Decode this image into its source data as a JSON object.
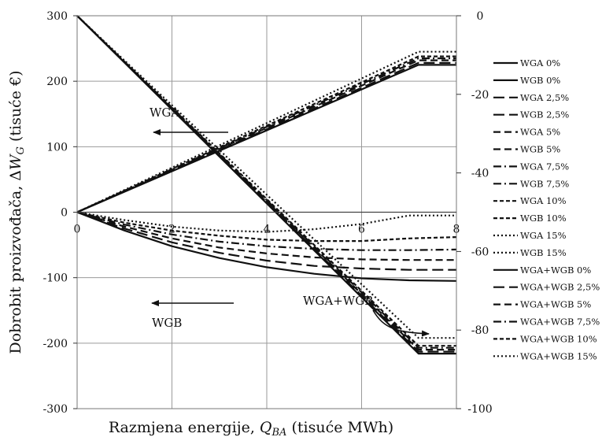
{
  "chart_data": {
    "type": "line",
    "xlabel": "Razmjena energije, Q_BA (tisuće MWh)",
    "xlabel_parts": [
      "Razmjena energije, ",
      "Q",
      "BA",
      " (tisuće MWh)"
    ],
    "ylabel": "Dobrobit proizvođača, ΔW_G (tisuće €)",
    "ylabel_parts": [
      "Dobrobit proizvođača, Δ",
      "W",
      "G",
      " (tisuće €)"
    ],
    "xlim": [
      0,
      8
    ],
    "ylim_left": [
      -300,
      300
    ],
    "ylim_right": [
      -100,
      0
    ],
    "xticks": [
      "0",
      "2",
      "4",
      "6",
      "8"
    ],
    "yticks_left": [
      "300",
      "200",
      "100",
      "0",
      "-100",
      "-200",
      "-300"
    ],
    "yticks_right": [
      "0",
      "-20",
      "-40",
      "-60",
      "-80",
      "-100"
    ],
    "grid": true,
    "legend_position": "right",
    "annotations": [
      "WGA",
      "WGB",
      "WGA+WGB"
    ],
    "series": [
      {
        "name": "WGA 0%",
        "axis": "left",
        "style": "solid",
        "points": [
          [
            0,
            0
          ],
          [
            7.2,
            225
          ],
          [
            8,
            225
          ]
        ]
      },
      {
        "name": "WGB 0%",
        "axis": "left",
        "style": "solid",
        "points": [
          [
            0,
            0
          ],
          [
            1,
            -28
          ],
          [
            2,
            -52
          ],
          [
            3,
            -70
          ],
          [
            4,
            -84
          ],
          [
            5,
            -94
          ],
          [
            6,
            -101
          ],
          [
            7,
            -104
          ],
          [
            8,
            -105
          ]
        ]
      },
      {
        "name": "WGA 2,5%",
        "axis": "left",
        "style": "longdash",
        "points": [
          [
            0,
            0
          ],
          [
            7.2,
            228
          ],
          [
            8,
            228
          ]
        ]
      },
      {
        "name": "WGB 2,5%",
        "axis": "left",
        "style": "longdash",
        "points": [
          [
            0,
            0
          ],
          [
            1,
            -25
          ],
          [
            2,
            -46
          ],
          [
            3,
            -62
          ],
          [
            4,
            -74
          ],
          [
            5,
            -82
          ],
          [
            6,
            -86
          ],
          [
            7,
            -88
          ],
          [
            8,
            -88
          ]
        ]
      },
      {
        "name": "WGA 5%",
        "axis": "left",
        "style": "dash",
        "points": [
          [
            0,
            0
          ],
          [
            7.2,
            232
          ],
          [
            8,
            232
          ]
        ]
      },
      {
        "name": "WGB 5%",
        "axis": "left",
        "style": "dash",
        "points": [
          [
            0,
            0
          ],
          [
            1,
            -22
          ],
          [
            2,
            -40
          ],
          [
            3,
            -54
          ],
          [
            4,
            -63
          ],
          [
            5,
            -69
          ],
          [
            6,
            -72
          ],
          [
            7,
            -73
          ],
          [
            8,
            -73
          ]
        ]
      },
      {
        "name": "WGA 7,5%",
        "axis": "left",
        "style": "dashdot",
        "points": [
          [
            0,
            0
          ],
          [
            7.2,
            235
          ],
          [
            8,
            235
          ]
        ]
      },
      {
        "name": "WGB 7,5%",
        "axis": "left",
        "style": "dashdot",
        "points": [
          [
            0,
            0
          ],
          [
            1,
            -19
          ],
          [
            2,
            -34
          ],
          [
            3,
            -45
          ],
          [
            4,
            -52
          ],
          [
            5,
            -56
          ],
          [
            6,
            -58
          ],
          [
            7,
            -58
          ],
          [
            8,
            -57
          ]
        ]
      },
      {
        "name": "WGA 10%",
        "axis": "left",
        "style": "shortdash",
        "points": [
          [
            0,
            0
          ],
          [
            7.2,
            238
          ],
          [
            8,
            238
          ]
        ]
      },
      {
        "name": "WGB 10%",
        "axis": "left",
        "style": "shortdash",
        "points": [
          [
            0,
            0
          ],
          [
            1,
            -16
          ],
          [
            2,
            -28
          ],
          [
            3,
            -36
          ],
          [
            4,
            -42
          ],
          [
            5,
            -44
          ],
          [
            6,
            -44
          ],
          [
            7,
            -40
          ],
          [
            8,
            -38
          ]
        ]
      },
      {
        "name": "WGA 15%",
        "axis": "left",
        "style": "dotted",
        "points": [
          [
            0,
            0
          ],
          [
            7.2,
            245
          ],
          [
            8,
            245
          ]
        ]
      },
      {
        "name": "WGB 15%",
        "axis": "left",
        "style": "dotted",
        "points": [
          [
            0,
            0
          ],
          [
            1,
            -12
          ],
          [
            2,
            -22
          ],
          [
            3,
            -28
          ],
          [
            4,
            -30
          ],
          [
            5,
            -26
          ],
          [
            6,
            -18
          ],
          [
            7,
            -5
          ],
          [
            8,
            -5
          ]
        ]
      },
      {
        "name": "WGA+WGB 0%",
        "axis": "right",
        "style": "solid",
        "points": [
          [
            0,
            0
          ],
          [
            7.2,
            -86
          ],
          [
            8,
            -86
          ]
        ]
      },
      {
        "name": "WGA+WGB 2,5%",
        "axis": "right",
        "style": "longdash",
        "points": [
          [
            0,
            0
          ],
          [
            7.2,
            -85.5
          ],
          [
            8,
            -85.5
          ]
        ]
      },
      {
        "name": "WGA+WGB 5%",
        "axis": "right",
        "style": "dash",
        "points": [
          [
            0,
            0
          ],
          [
            7.2,
            -85
          ],
          [
            8,
            -85
          ]
        ]
      },
      {
        "name": "WGA+WGB 7,5%",
        "axis": "right",
        "style": "dashdot",
        "points": [
          [
            0,
            0
          ],
          [
            7.2,
            -84.5
          ],
          [
            8,
            -84.5
          ]
        ]
      },
      {
        "name": "WGA+WGB 10%",
        "axis": "right",
        "style": "shortdash",
        "points": [
          [
            0,
            0
          ],
          [
            7.2,
            -84
          ],
          [
            8,
            -84
          ]
        ]
      },
      {
        "name": "WGA+WGB 15%",
        "axis": "right",
        "style": "dotted",
        "points": [
          [
            0,
            0
          ],
          [
            7.2,
            -82
          ],
          [
            8,
            -82
          ]
        ]
      }
    ]
  }
}
